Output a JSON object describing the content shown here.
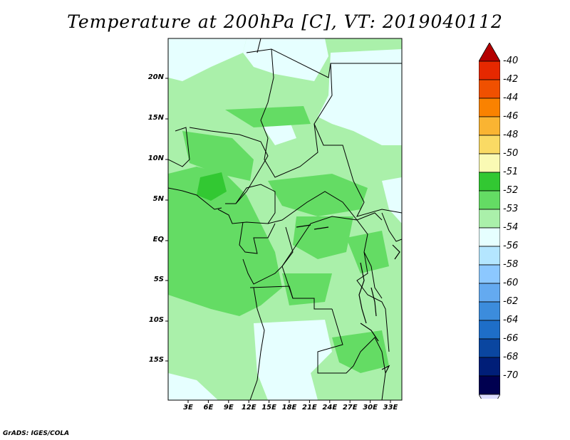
{
  "title": "Temperature at 200hPa [C], VT: 2019040112",
  "lat_labels": [
    "20N",
    "15N",
    "10N",
    "5N",
    "EQ",
    "5S",
    "10S",
    "15S"
  ],
  "lon_labels": [
    "3E",
    "6E",
    "9E",
    "12E",
    "15E",
    "18E",
    "21E",
    "24E",
    "27E",
    "30E",
    "33E"
  ],
  "colorbar": {
    "labels": [
      "-40",
      "-42",
      "-44",
      "-46",
      "-48",
      "-50",
      "-51",
      "-52",
      "-53",
      "-54",
      "-56",
      "-58",
      "-60",
      "-62",
      "-64",
      "-66",
      "-68",
      "-70"
    ],
    "colors": [
      "#b40000",
      "#e62800",
      "#f05000",
      "#fa8200",
      "#fab432",
      "#fada64",
      "#fafab4",
      "#32c832",
      "#64dc64",
      "#aaf0aa",
      "#e6ffff",
      "#b4e6ff",
      "#8cc8ff",
      "#64aaf0",
      "#3c8cdc",
      "#1e6ec8",
      "#0a46a0",
      "#001e78",
      "#000050",
      "#dcdcff"
    ]
  },
  "footer": "GrADS: IGES/COLA"
}
